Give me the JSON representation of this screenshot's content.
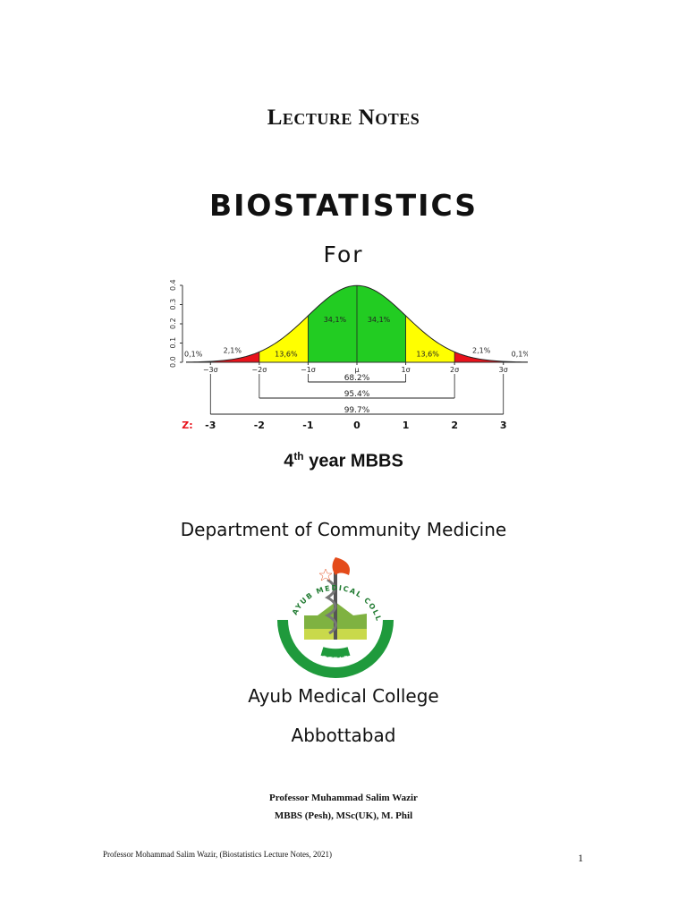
{
  "header": {
    "lecture_notes": "Lecture Notes",
    "title": "BIOSTATISTICS",
    "for_label": "For"
  },
  "chart_data": {
    "type": "area",
    "title": "",
    "y_ticks": [
      "0.0",
      "0.1",
      "0.2",
      "0.3",
      "0.4"
    ],
    "ylim": [
      0,
      0.4
    ],
    "xlim": [
      -3.5,
      3.5
    ],
    "x_tick_labels": [
      "−3σ",
      "−2σ",
      "−1σ",
      "μ",
      "1σ",
      "2σ",
      "3σ"
    ],
    "regions": [
      {
        "label": "0,1%",
        "from": -3.5,
        "to": -3,
        "color": "#ffffff"
      },
      {
        "label": "2,1%",
        "from": -3,
        "to": -2,
        "color": "#e8121b"
      },
      {
        "label": "13,6%",
        "from": -2,
        "to": -1,
        "color": "#ffff00"
      },
      {
        "label": "34,1%",
        "from": -1,
        "to": 0,
        "color": "#22cc22"
      },
      {
        "label": "34,1%",
        "from": 0,
        "to": 1,
        "color": "#22cc22"
      },
      {
        "label": "13,6%",
        "from": 1,
        "to": 2,
        "color": "#ffff00"
      },
      {
        "label": "2,1%",
        "from": 2,
        "to": 3,
        "color": "#e8121b"
      },
      {
        "label": "0,1%",
        "from": 3,
        "to": 3.5,
        "color": "#ffffff"
      }
    ],
    "ranges": [
      {
        "label": "68.2%",
        "from": -1,
        "to": 1
      },
      {
        "label": "95.4%",
        "from": -2,
        "to": 2
      },
      {
        "label": "99.7%",
        "from": -3,
        "to": 3
      }
    ],
    "z_label": "Z:",
    "z_values": [
      "-3",
      "-2",
      "-1",
      "0",
      "1",
      "2",
      "3"
    ],
    "z_label_color": "#e8121b"
  },
  "course": {
    "year_num": "4",
    "year_sup": "th",
    "year_rest": " year MBBS"
  },
  "department": "Department of Community Medicine",
  "logo": {
    "arc_text": "AYUB MEDICAL COLLEGE",
    "bottom_text": "ABBOTTABAD",
    "green": "#1f9a3c"
  },
  "college": "Ayub Medical College",
  "city": "Abbottabad",
  "author": {
    "name": "Professor Muhammad Salim Wazir",
    "quals": "MBBS (Pesh), MSc(UK), M. Phil"
  },
  "footer": {
    "text": "Professor Mohammad Salim Wazir, (Biostatistics Lecture Notes, 2021)",
    "page": "1"
  }
}
